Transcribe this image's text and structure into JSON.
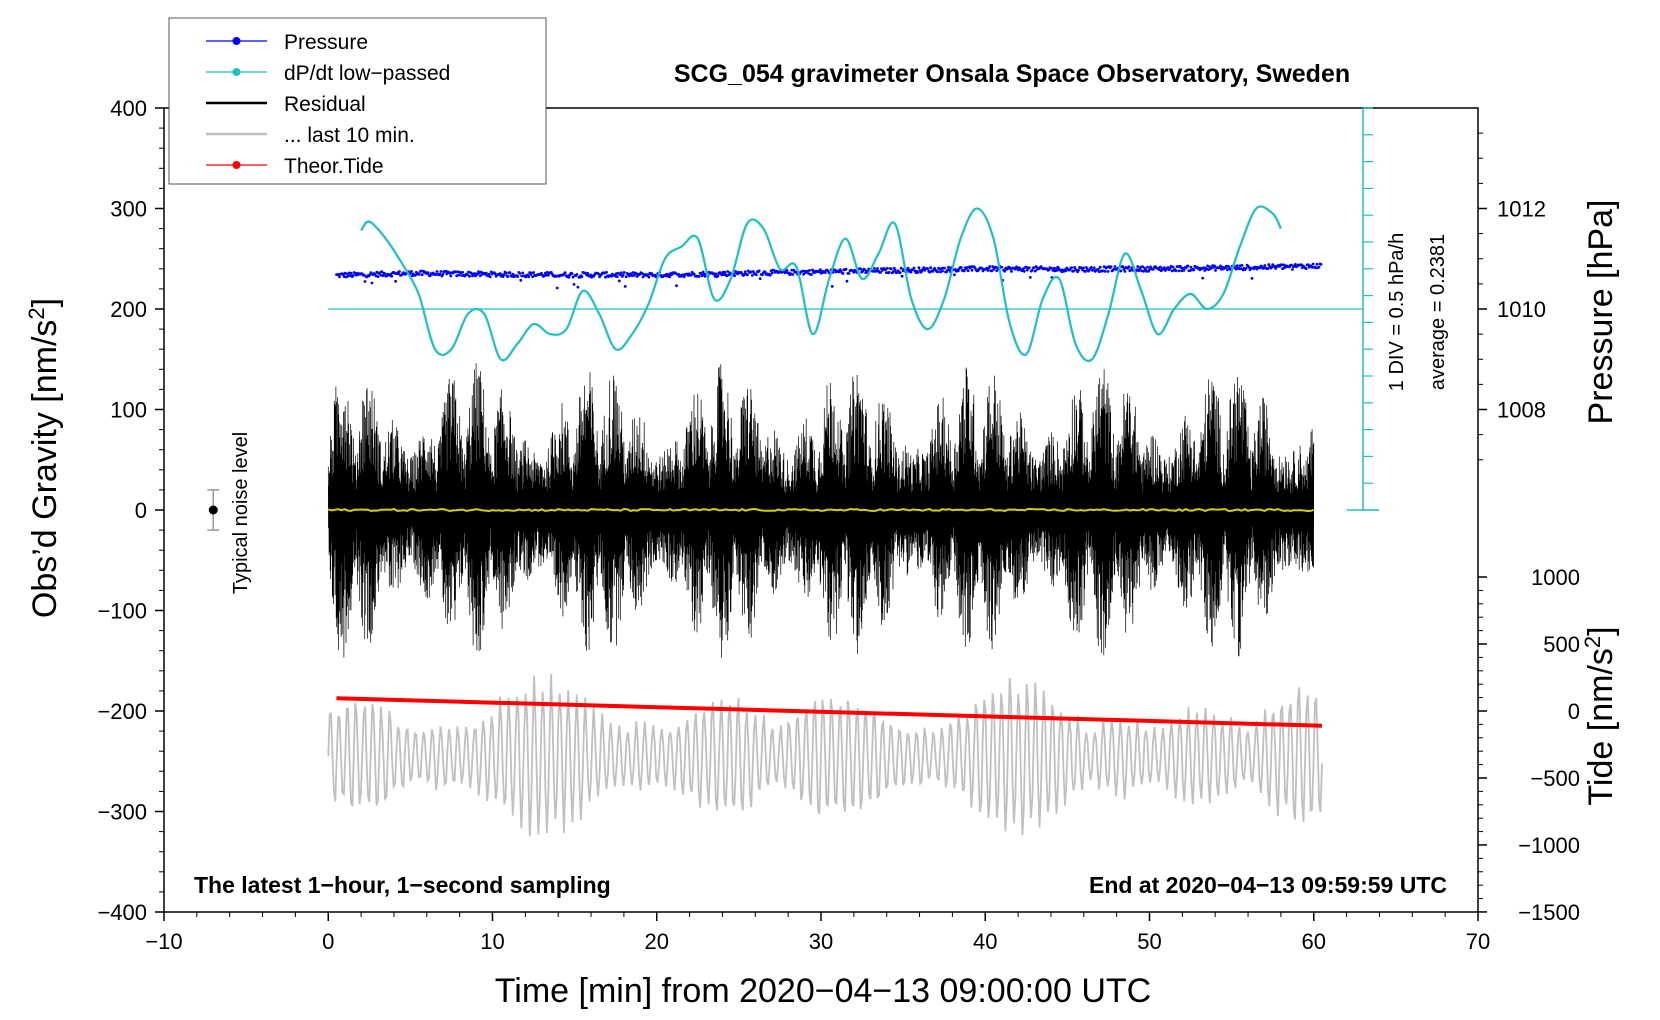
{
  "chart_data": {
    "type": "line",
    "title": "SCG_054 gravimeter Onsala Space Observatory, Sweden",
    "xlabel": "Time [min] from 2020−04−13 09:00:00 UTC",
    "ylabel": "Obs’d Gravity [nm/s",
    "ylabel_sup": "2",
    "ylabel_close": "]",
    "y2label_pressure": "Pressure [hPa]",
    "y2label_tide": "Tide [nm/s",
    "y2label_tide_sup": "2",
    "y2label_tide_close": "]",
    "xlim": [
      -10,
      70
    ],
    "ylim": [
      -400,
      400
    ],
    "x_ticks": [
      {
        "v": -10,
        "label": "−10"
      },
      {
        "v": 0,
        "label": "0"
      },
      {
        "v": 10,
        "label": "10"
      },
      {
        "v": 20,
        "label": "20"
      },
      {
        "v": 30,
        "label": "30"
      },
      {
        "v": 40,
        "label": "40"
      },
      {
        "v": 50,
        "label": "50"
      },
      {
        "v": 60,
        "label": "60"
      },
      {
        "v": 70,
        "label": "70"
      }
    ],
    "y_ticks": [
      {
        "v": 400,
        "label": "400"
      },
      {
        "v": 300,
        "label": "300"
      },
      {
        "v": 200,
        "label": "200"
      },
      {
        "v": 100,
        "label": "100"
      },
      {
        "v": 0,
        "label": "0"
      },
      {
        "v": -100,
        "label": "−100"
      },
      {
        "v": -200,
        "label": "−200"
      },
      {
        "v": -300,
        "label": "−300"
      },
      {
        "v": -400,
        "label": "−400"
      }
    ],
    "pressure_axis": {
      "ticks": [
        {
          "v": 1012,
          "label": "1012"
        },
        {
          "v": 1010,
          "label": "1010"
        },
        {
          "v": 1008,
          "label": "1008"
        }
      ],
      "gravity_at_1010": 200,
      "gravity_per_hPa": 50
    },
    "tide_axis": {
      "ticks": [
        {
          "v": 1000,
          "label": "1000"
        },
        {
          "v": 500,
          "label": "500"
        },
        {
          "v": 0,
          "label": "0"
        },
        {
          "v": -500,
          "label": "−500"
        },
        {
          "v": -1000,
          "label": "−1000"
        },
        {
          "v": -1500,
          "label": "−1500"
        }
      ],
      "gravity_at_tide_0": -200,
      "gravity_per_tide_unit": 0.1333
    },
    "dpdt_scale": {
      "label": "1 DIV = 0.5 hPa/h",
      "average_label": "average = 0.2381",
      "x_position": 63,
      "y_range": [
        0,
        400
      ],
      "divisions": 15,
      "baseline": 200
    },
    "noise_marker": {
      "label": "Typical noise level",
      "x": -7,
      "y": 0,
      "err": 20
    },
    "notes": {
      "left": "The latest 1−hour, 1−second sampling",
      "right": "End at 2020−04−13 09:59:59 UTC"
    },
    "legend": [
      {
        "label": "Pressure",
        "color": "#0000ff",
        "marker": "dot"
      },
      {
        "label": "dP/dt low−passed",
        "color": "#20c0c0",
        "marker": "dot"
      },
      {
        "label": "Residual",
        "color": "#000000",
        "marker": "none"
      },
      {
        "label": "... last 10 min.",
        "color": "#c0c0c0",
        "marker": "none"
      },
      {
        "label": "Theor.Tide",
        "color": "#ff0000",
        "marker": "dot"
      }
    ],
    "series": [
      {
        "name": "Pressure",
        "unit": "hPa",
        "color": "#0000ff",
        "x": [
          0.5,
          5,
          10,
          15,
          20,
          25,
          30,
          35,
          40,
          45,
          50,
          55,
          60.5
        ],
        "y": [
          1010.67,
          1010.71,
          1010.69,
          1010.68,
          1010.68,
          1010.71,
          1010.74,
          1010.77,
          1010.8,
          1010.79,
          1010.8,
          1010.82,
          1010.86
        ]
      },
      {
        "name": "dP/dt low-passed",
        "unit": "nm/s² equiv.",
        "color": "#20c0c0",
        "x": [
          2,
          2.5,
          3.5,
          4.5,
          5.5,
          6.5,
          7.5,
          8.5,
          9.5,
          10.5,
          11.5,
          12.5,
          13.5,
          14.5,
          15.5,
          16.5,
          17.5,
          18.5,
          19.5,
          20.5,
          21.5,
          22.5,
          23.5,
          24.5,
          25.5,
          26.5,
          27.5,
          28.5,
          29.5,
          30.5,
          31.5,
          32.5,
          33.5,
          34.5,
          35.5,
          36.5,
          37.5,
          38.5,
          39.5,
          40.5,
          41.5,
          42.5,
          43.5,
          44.5,
          45.5,
          46.5,
          47.5,
          48.5,
          49.5,
          50.5,
          51.5,
          52.5,
          53.5,
          54.5,
          55.5,
          56.5,
          57.5,
          58
        ],
        "y": [
          278,
          287,
          270,
          245,
          215,
          160,
          160,
          195,
          195,
          150,
          165,
          185,
          175,
          180,
          218,
          195,
          160,
          175,
          205,
          250,
          262,
          270,
          210,
          230,
          285,
          280,
          240,
          242,
          175,
          230,
          270,
          230,
          255,
          285,
          210,
          180,
          210,
          270,
          300,
          270,
          185,
          155,
          210,
          230,
          165,
          150,
          195,
          255,
          218,
          175,
          200,
          215,
          200,
          215,
          262,
          300,
          295,
          280
        ]
      },
      {
        "name": "Residual",
        "unit": "nm/s²",
        "color": "#000000",
        "x": [
          0,
          60
        ],
        "envelope": [
          -150,
          150
        ],
        "mean": 0
      },
      {
        "name": "... last 10 min.",
        "unit": "nm/s²",
        "color": "#c0c0c0",
        "x": [
          0,
          60.5
        ],
        "center": -245,
        "envelope": [
          -330,
          -160
        ]
      },
      {
        "name": "Theor.Tide",
        "unit": "nm/s² (tide axis)",
        "color": "#ff0000",
        "x": [
          0.5,
          60.5
        ],
        "y": [
          95,
          -110
        ]
      }
    ]
  }
}
